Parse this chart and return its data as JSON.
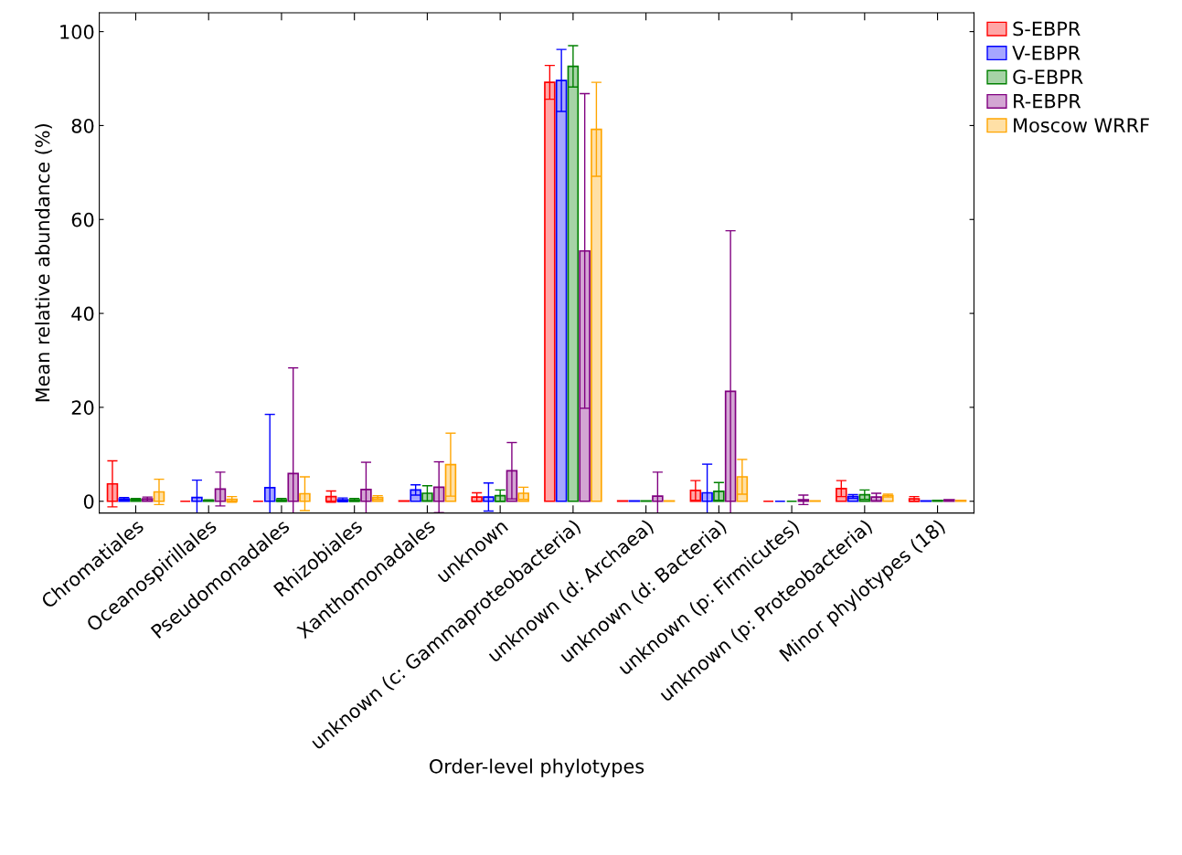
{
  "chart_data": {
    "type": "bar",
    "xlabel": "Order-level phylotypes",
    "ylabel": "Mean relative abundance (%)",
    "categories": [
      "Chromatiales",
      "Oceanospirillales",
      "Pseudomonadales",
      "Rhizobiales",
      "Xanthomonadales",
      "unknown",
      "unknown (c: Gammaproteobacteria)",
      "unknown (d: Archaea)",
      "unknown (d: Bacteria)",
      "unknown (p: Firmicutes)",
      "unknown (p: Proteobacteria)",
      "Minor phylotypes (18)"
    ],
    "ylim": [
      -2.5,
      104
    ],
    "yticks": [
      0,
      20,
      40,
      60,
      80,
      100
    ],
    "grid": false,
    "legend": "top right",
    "series": [
      {
        "name": "S-EBPR",
        "color": "#ff0000",
        "values": [
          3.7,
          0,
          0,
          1.0,
          0.1,
          0.9,
          89.2,
          0.1,
          2.3,
          0,
          2.7,
          0.5
        ],
        "errors": [
          4.9,
          null,
          null,
          1.2,
          null,
          0.9,
          3.6,
          null,
          2.1,
          null,
          1.7,
          0.5
        ]
      },
      {
        "name": "V-EBPR",
        "color": "#0000ff",
        "values": [
          0.5,
          0.8,
          2.9,
          0.3,
          2.4,
          0.9,
          89.6,
          0.1,
          1.8,
          0,
          1.0,
          0.1
        ],
        "errors": [
          0.3,
          3.7,
          15.6,
          0.4,
          1.1,
          3.0,
          6.6,
          null,
          6.1,
          null,
          0.4,
          null
        ]
      },
      {
        "name": "G-EBPR",
        "color": "#008000",
        "values": [
          0.4,
          0.2,
          0.3,
          0.3,
          1.7,
          1.2,
          92.6,
          0.1,
          2.1,
          0,
          1.4,
          0.2
        ],
        "errors": [
          0.2,
          0.1,
          0.3,
          0.3,
          1.6,
          1.2,
          4.4,
          null,
          1.9,
          null,
          1.0,
          null
        ]
      },
      {
        "name": "R-EBPR",
        "color": "#800080",
        "values": [
          0.5,
          2.6,
          5.9,
          2.5,
          3.0,
          6.5,
          53.3,
          1.1,
          23.4,
          0.3,
          0.9,
          0.3
        ],
        "errors": [
          0.4,
          3.6,
          22.5,
          5.8,
          5.4,
          6.0,
          33.5,
          5.1,
          34.2,
          1.0,
          0.8,
          null
        ]
      },
      {
        "name": "Moscow WRRF",
        "color": "#ffa500",
        "values": [
          2.0,
          0.4,
          1.6,
          0.8,
          7.8,
          1.7,
          79.2,
          0.1,
          5.2,
          0.1,
          1.2,
          0.2
        ],
        "errors": [
          2.7,
          0.6,
          3.6,
          0.4,
          6.7,
          1.3,
          10.0,
          null,
          3.7,
          null,
          0.3,
          null
        ]
      }
    ]
  }
}
